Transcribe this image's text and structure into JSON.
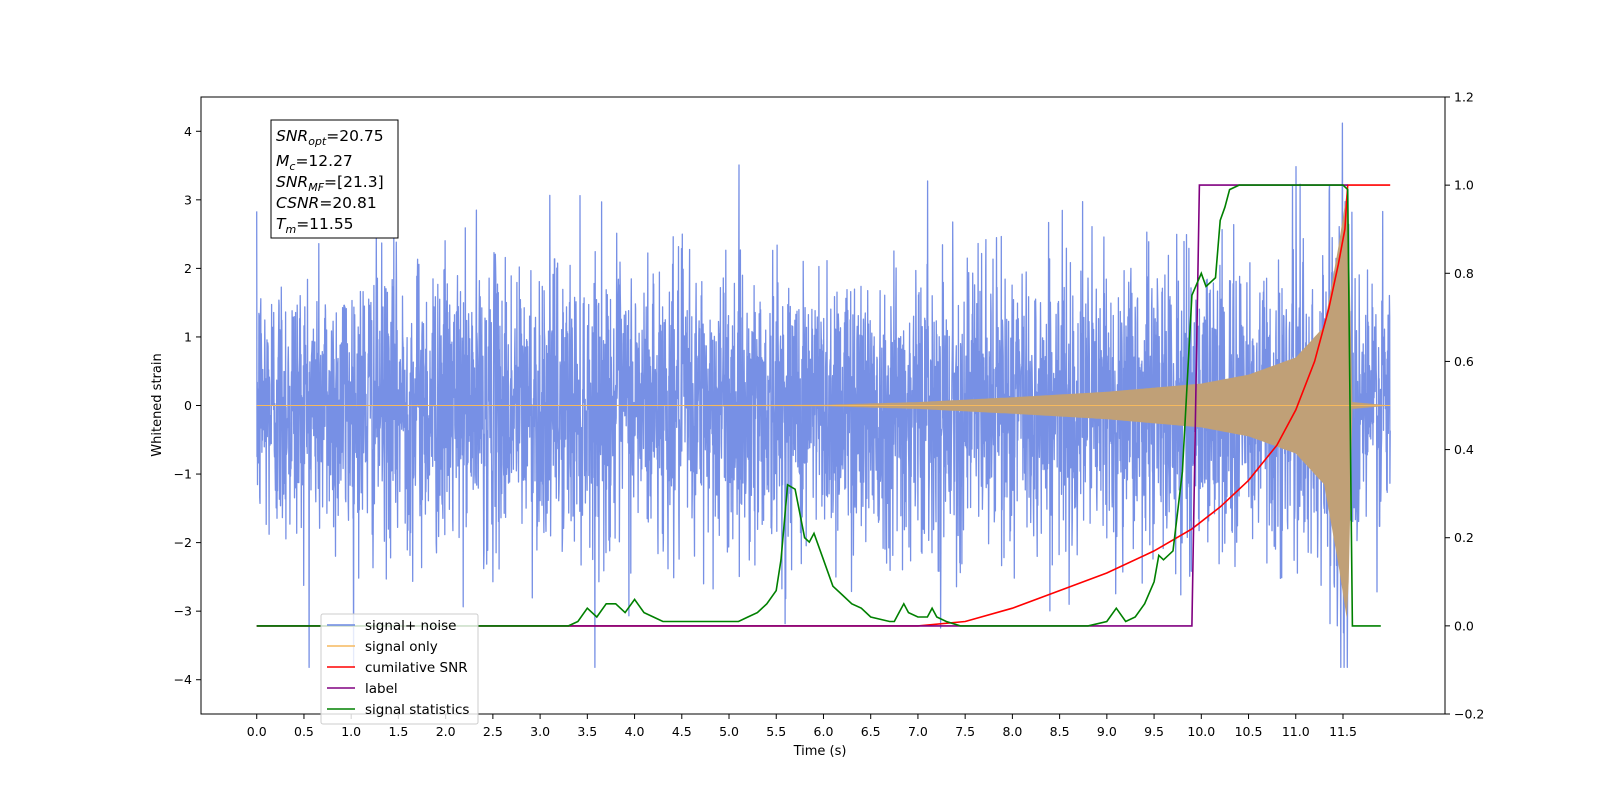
{
  "chart_data": {
    "type": "line",
    "xlabel": "Time (s)",
    "ylabel": "Whitened strain",
    "xlim": [
      -0.59,
      12.58
    ],
    "ylim": [
      -4.5,
      4.5
    ],
    "y2lim": [
      -0.2,
      1.2
    ],
    "x_ticks": [
      "0.0",
      "0.5",
      "1.0",
      "1.5",
      "2.0",
      "2.5",
      "3.0",
      "3.5",
      "4.0",
      "4.5",
      "5.0",
      "5.5",
      "6.0",
      "6.5",
      "7.0",
      "7.5",
      "8.0",
      "8.5",
      "9.0",
      "9.5",
      "10.0",
      "10.5",
      "11.0",
      "11.5"
    ],
    "y_ticks": [
      "4",
      "3",
      "2",
      "1",
      "0",
      "−1",
      "−2",
      "−3",
      "−4"
    ],
    "y2_ticks": [
      "1.2",
      "1.0",
      "0.8",
      "0.6",
      "0.4",
      "0.2",
      "0.0",
      "−0.2"
    ],
    "grid": false,
    "legend_position": "lower-left",
    "colors": {
      "signal_noise": "#6b87e3",
      "signal_only": "#f5b95f",
      "signal_only_overlap": "#c0a077",
      "cumulative_snr": "#ff0000",
      "label": "#800080",
      "signal_statistics": "#008000"
    },
    "info_box": {
      "snr_opt": "SNR_opt=20.75",
      "mc": "M_c=12.27",
      "snr_mf": "SNR_MF=[21.3]",
      "csnr": "CSNR=20.81",
      "tm": "T_m=11.55"
    },
    "series": [
      {
        "name": "signal+ noise",
        "axis": "left",
        "description_values": {
          "x_range": [
            0.0,
            12.0
          ],
          "typical_envelope": [
            -2.5,
            2.5
          ],
          "max": 4.12,
          "min": -3.82
        }
      },
      {
        "name": "signal only",
        "axis": "left",
        "x": [
          0.0,
          6.0,
          7.0,
          8.0,
          9.0,
          10.0,
          10.5,
          11.0,
          11.3,
          11.45,
          11.55,
          11.6,
          12.0
        ],
        "amplitude": [
          0.0,
          0.01,
          0.05,
          0.12,
          0.2,
          0.32,
          0.45,
          0.7,
          1.15,
          2.3,
          3.2,
          0.05,
          0.0
        ]
      },
      {
        "name": "cumilative SNR",
        "axis": "right",
        "x": [
          0.0,
          7.0,
          7.5,
          8.0,
          8.5,
          9.0,
          9.5,
          9.9,
          10.2,
          10.5,
          10.8,
          11.0,
          11.2,
          11.35,
          11.45,
          11.52,
          11.55,
          12.0
        ],
        "y": [
          0.0,
          0.0,
          0.01,
          0.04,
          0.08,
          0.12,
          0.17,
          0.22,
          0.27,
          0.33,
          0.41,
          0.49,
          0.6,
          0.72,
          0.82,
          0.9,
          1.0,
          1.0
        ]
      },
      {
        "name": "label",
        "axis": "right",
        "x": [
          0.0,
          9.9,
          9.98,
          11.55
        ],
        "y": [
          0.0,
          0.0,
          1.0,
          1.0
        ]
      },
      {
        "name": "signal statistics",
        "axis": "right",
        "x": [
          0.0,
          3.3,
          3.4,
          3.5,
          3.6,
          3.7,
          3.8,
          3.9,
          4.0,
          4.1,
          4.2,
          4.3,
          4.5,
          5.0,
          5.1,
          5.2,
          5.3,
          5.4,
          5.5,
          5.55,
          5.62,
          5.7,
          5.8,
          5.85,
          5.9,
          6.0,
          6.1,
          6.2,
          6.3,
          6.4,
          6.5,
          6.7,
          6.75,
          6.8,
          6.85,
          6.9,
          7.0,
          7.1,
          7.15,
          7.2,
          7.3,
          7.45,
          8.8,
          9.0,
          9.1,
          9.2,
          9.3,
          9.4,
          9.5,
          9.55,
          9.6,
          9.7,
          9.8,
          9.9,
          10.0,
          10.05,
          10.15,
          10.2,
          10.25,
          10.3,
          10.4,
          10.5,
          11.5,
          11.55,
          11.6,
          11.9
        ],
        "y": [
          0.0,
          0.0,
          0.01,
          0.04,
          0.02,
          0.05,
          0.05,
          0.03,
          0.06,
          0.03,
          0.02,
          0.01,
          0.01,
          0.01,
          0.01,
          0.02,
          0.03,
          0.05,
          0.08,
          0.15,
          0.32,
          0.31,
          0.2,
          0.19,
          0.21,
          0.15,
          0.09,
          0.07,
          0.05,
          0.04,
          0.02,
          0.01,
          0.01,
          0.03,
          0.05,
          0.03,
          0.02,
          0.02,
          0.04,
          0.02,
          0.01,
          0.0,
          0.0,
          0.01,
          0.04,
          0.01,
          0.02,
          0.05,
          0.1,
          0.16,
          0.15,
          0.17,
          0.35,
          0.75,
          0.8,
          0.77,
          0.79,
          0.92,
          0.95,
          0.99,
          1.0,
          1.0,
          1.0,
          0.99,
          0.0,
          0.0
        ]
      }
    ]
  }
}
